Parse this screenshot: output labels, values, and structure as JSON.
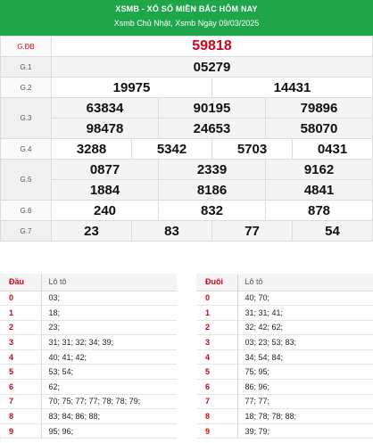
{
  "header": {
    "title": "XSMB - XỔ SỐ MIỀN BẮC HÔM NAY",
    "subtitle": "Xsmb Chủ Nhật, Xsmb Ngày 09/03/2025"
  },
  "prizes": [
    {
      "label": "G.ĐB",
      "numbers": [
        "59818"
      ]
    },
    {
      "label": "G.1",
      "numbers": [
        "05279"
      ]
    },
    {
      "label": "G.2",
      "numbers": [
        "19975",
        "14431"
      ]
    },
    {
      "label": "G.3",
      "numbers": [
        "63834",
        "90195",
        "79896",
        "98478",
        "24653",
        "58070"
      ]
    },
    {
      "label": "G.4",
      "numbers": [
        "3288",
        "5342",
        "5703",
        "0431"
      ]
    },
    {
      "label": "G.5",
      "numbers": [
        "0877",
        "2339",
        "9162",
        "1884",
        "8186",
        "4841"
      ]
    },
    {
      "label": "G.6",
      "numbers": [
        "240",
        "832",
        "878"
      ]
    },
    {
      "label": "G.7",
      "numbers": [
        "23",
        "83",
        "77",
        "54"
      ]
    }
  ],
  "dau_table": {
    "head_key": "Đầu",
    "head_val": "Lô tô",
    "rows": [
      {
        "k": "0",
        "v": "03;"
      },
      {
        "k": "1",
        "v": "18;"
      },
      {
        "k": "2",
        "v": "23;"
      },
      {
        "k": "3",
        "v": "31; 31; 32; 34; 39;"
      },
      {
        "k": "4",
        "v": "40; 41; 42;"
      },
      {
        "k": "5",
        "v": "53; 54;"
      },
      {
        "k": "6",
        "v": "62;"
      },
      {
        "k": "7",
        "v": "70; 75; 77; 77; 78; 78; 79;"
      },
      {
        "k": "8",
        "v": "83; 84; 86; 88;"
      },
      {
        "k": "9",
        "v": "95; 96;"
      }
    ]
  },
  "duoi_table": {
    "head_key": "Đuôi",
    "head_val": "Lô tô",
    "rows": [
      {
        "k": "0",
        "v": "40; 70;"
      },
      {
        "k": "1",
        "v": "31; 31; 41;"
      },
      {
        "k": "2",
        "v": "32; 42; 62;"
      },
      {
        "k": "3",
        "v": "03; 23; 53; 83;"
      },
      {
        "k": "4",
        "v": "34; 54; 84;"
      },
      {
        "k": "5",
        "v": "75; 95;"
      },
      {
        "k": "6",
        "v": "86; 96;"
      },
      {
        "k": "7",
        "v": "77; 77;"
      },
      {
        "k": "8",
        "v": "18; 78; 78; 88;"
      },
      {
        "k": "9",
        "v": "39; 79;"
      }
    ]
  },
  "colors": {
    "header_bg": "#1fa64a",
    "accent_red": "#d0021b"
  }
}
